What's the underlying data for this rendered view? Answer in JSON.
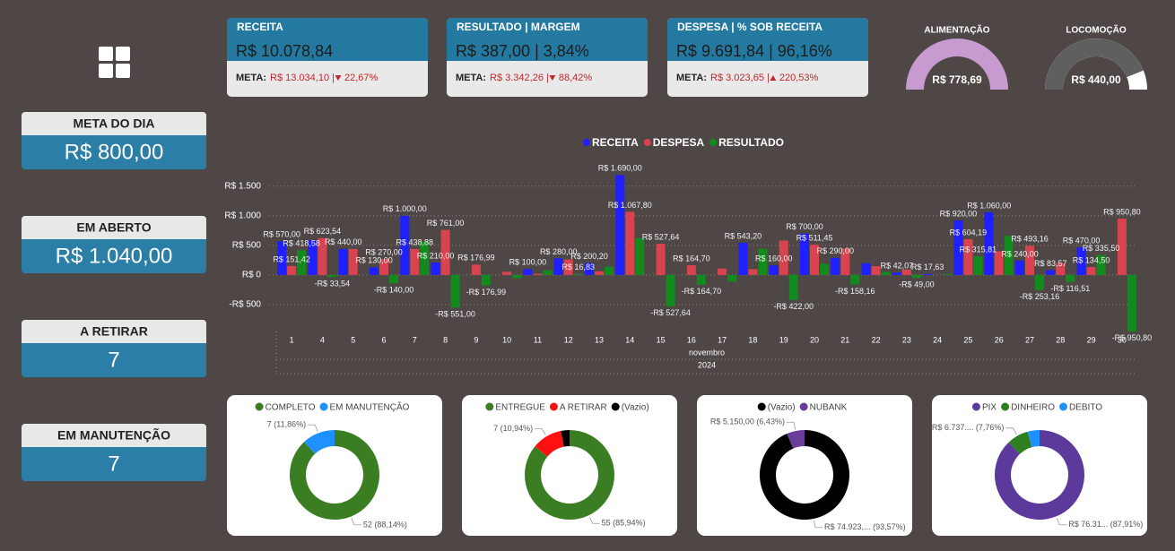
{
  "side_cards": [
    {
      "label": "META DO DIA",
      "value": "R$ 800,00"
    },
    {
      "label": "EM ABERTO",
      "value": "R$ 1.040,00"
    },
    {
      "label": "A RETIRAR",
      "value": "7"
    },
    {
      "label": "EM MANUTENÇÃO",
      "value": "7"
    }
  ],
  "kpi_cards": [
    {
      "title": "RECEITA",
      "value": "R$ 10.078,84",
      "meta_label": "META:",
      "meta": "R$ 13.034,10 |",
      "change": "22,67%",
      "trend": "down"
    },
    {
      "title": "RESULTADO | MARGEM",
      "value": "R$ 387,00 | 3,84%",
      "meta_label": "META:",
      "meta": "R$ 3.342,26 |",
      "change": "88,42%",
      "trend": "down"
    },
    {
      "title": "DESPESA | % SOB RECEITA",
      "value": "R$ 9.691,84 | 96,16%",
      "meta_label": "META:",
      "meta": "R$ 3.023,65 |",
      "change": "220,53%",
      "trend": "up"
    }
  ],
  "gauges": [
    {
      "title": "ALIMENTAÇÃO",
      "value": "R$ 778,69",
      "color": "#c79bd0"
    },
    {
      "title": "LOCOMOÇÃO",
      "value": "R$ 440,00",
      "color": "#5f5f5f"
    }
  ],
  "chart_data": [
    {
      "type": "bar",
      "legend": "top",
      "grid": true,
      "categories": [
        "1",
        "4",
        "5",
        "6",
        "7",
        "8",
        "9",
        "10",
        "11",
        "12",
        "13",
        "14",
        "15",
        "16",
        "17",
        "18",
        "19",
        "20",
        "21",
        "22",
        "23",
        "24",
        "25",
        "26",
        "27",
        "28",
        "29",
        "30"
      ],
      "x_groups": [
        "novembro",
        "2024"
      ],
      "ylim": [
        -1000,
        1800
      ],
      "yticks": [
        {
          "value": -500,
          "label": "-R$ 500"
        },
        {
          "value": 0,
          "label": "R$ 0"
        },
        {
          "value": 500,
          "label": "R$ 500"
        },
        {
          "value": 1000,
          "label": "R$ 1.000"
        },
        {
          "value": 1500,
          "label": "R$ 1.500"
        }
      ],
      "series": [
        {
          "name": "RECEITA",
          "color": "#1f1fff",
          "values": [
            570,
            590,
            440,
            130,
            1000,
            210,
            0,
            0,
            100,
            280,
            200.2,
            1690,
            0,
            0,
            0,
            543.2,
            160,
            700,
            290,
            200,
            42.07,
            17.63,
            920,
            1060,
            240,
            83.57,
            470,
            0
          ],
          "value_labels": [
            "R$ 570,00",
            null,
            "R$ 440,00",
            "R$ 130,00",
            "R$ 1.000,00",
            "R$ 210,00",
            null,
            null,
            "R$ 100,00",
            "R$ 280,00",
            "R$ 200,20",
            "R$ 1.690,00",
            null,
            null,
            null,
            "R$ 543,20",
            "R$ 160,00",
            "R$ 700,00",
            "R$ 290,00",
            null,
            "R$ 42,07",
            "R$ 17,63",
            "R$ 920,00",
            "R$ 1.060,00",
            "R$ 240,00",
            "R$ 83,57",
            "R$ 470,00",
            null
          ]
        },
        {
          "name": "DESPESA",
          "color": "#d9434f",
          "values": [
            151.42,
            623.54,
            440,
            270,
            438.88,
            761,
            176.99,
            55,
            20,
            263.17,
            60,
            1067.8,
            527.64,
            164.7,
            110,
            100,
            582,
            511.45,
            448.16,
            150,
            91.07,
            0,
            604.19,
            400,
            493.16,
            200.08,
            134.5,
            950.8
          ],
          "value_labels": [
            "R$ 151,42",
            "R$ 623,54",
            null,
            "R$ 270,00",
            "R$ 438,88",
            "R$ 761,00",
            "R$ 176,99",
            null,
            null,
            null,
            null,
            "R$ 1.067,80",
            "R$ 527,64",
            "R$ 164,70",
            null,
            null,
            null,
            "R$ 511,45",
            null,
            null,
            null,
            null,
            "R$ 604,19",
            null,
            "R$ 493,16",
            null,
            "R$ 134,50",
            "R$ 950,80"
          ]
        },
        {
          "name": "RESULTADO",
          "color": "#138a1e",
          "values": [
            418.58,
            -33.54,
            0,
            -140,
            561.12,
            -551,
            -176.99,
            -55,
            80,
            16.83,
            140.2,
            622.2,
            -527.64,
            -164.7,
            -110,
            443.2,
            -422,
            188.55,
            -158.16,
            50,
            -49,
            17.63,
            315.81,
            660,
            -253.16,
            -116.51,
            335.5,
            -950.8
          ],
          "value_labels": [
            "R$ 418,58",
            "-R$ 33,54",
            null,
            "-R$ 140,00",
            null,
            "-R$ 551,00",
            "-R$ 176,99",
            null,
            null,
            "R$ 16,83",
            null,
            null,
            "-R$ 527,64",
            "-R$ 164,70",
            null,
            null,
            "-R$ 422,00",
            null,
            "-R$ 158,16",
            null,
            "-R$ 49,00",
            null,
            "R$ 315,81",
            null,
            "-R$ 253,16",
            "-R$ 116,51",
            "R$ 335,50",
            "-R$ 950,80"
          ]
        }
      ]
    },
    {
      "type": "donut",
      "categories": [
        "COMPLETO",
        "EM MANUTENÇÃO"
      ],
      "values": [
        52,
        7
      ],
      "value_labels": [
        "52 (88,14%)",
        "7 (11,86%)"
      ],
      "colors": [
        "#3b7d23",
        "#1e90ff"
      ]
    },
    {
      "type": "donut",
      "categories": [
        "ENTREGUE",
        "A RETIRAR",
        "(Vazio)"
      ],
      "values": [
        55,
        7,
        2
      ],
      "value_labels": [
        "55 (85,94%)",
        "7 (10,94%)",
        null
      ],
      "colors": [
        "#3b7d23",
        "#ff1010",
        "#000000"
      ]
    },
    {
      "type": "donut",
      "categories": [
        "(Vazio)",
        "NUBANK"
      ],
      "values": [
        74923,
        5150
      ],
      "value_labels": [
        "R$ 74.923,... (93,57%)",
        "R$ 5.150,00 (6,43%)"
      ],
      "colors": [
        "#000000",
        "#6a3d9a"
      ]
    },
    {
      "type": "donut",
      "categories": [
        "PIX",
        "DINHEIRO",
        "DEBITO"
      ],
      "values": [
        76310,
        6737,
        3759
      ],
      "value_labels": [
        "R$ 76.31... (87,91%)",
        "R$ 6.737.... (7,76%)",
        null
      ],
      "colors": [
        "#5b3a9c",
        "#2e7d1f",
        "#1e90ff"
      ]
    }
  ]
}
